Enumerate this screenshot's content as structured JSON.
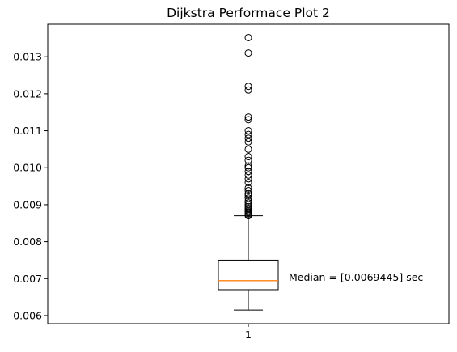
{
  "chart_data": {
    "type": "box",
    "title": "Dijkstra Performace Plot 2",
    "xlabel": "",
    "ylabel": "",
    "categories": [
      "1"
    ],
    "ylim": [
      0.00578,
      0.01388
    ],
    "yticks": [
      0.006,
      0.007,
      0.008,
      0.009,
      0.01,
      0.011,
      0.012,
      0.013
    ],
    "ytick_labels": [
      "0.006",
      "0.007",
      "0.008",
      "0.009",
      "0.010",
      "0.011",
      "0.012",
      "0.013"
    ],
    "grid": false,
    "box": {
      "whisker_low": 0.00615,
      "q1": 0.0067,
      "median": 0.0069445,
      "q3": 0.0075,
      "whisker_high": 0.0087
    },
    "outliers": [
      0.0087,
      0.00873,
      0.00876,
      0.0088,
      0.00883,
      0.00887,
      0.0089,
      0.00895,
      0.009,
      0.00905,
      0.0091,
      0.00918,
      0.00925,
      0.0093,
      0.00938,
      0.00945,
      0.0096,
      0.0097,
      0.0098,
      0.0099,
      0.01,
      0.01005,
      0.0102,
      0.0103,
      0.0105,
      0.0107,
      0.0108,
      0.0109,
      0.011,
      0.0113,
      0.01137,
      0.0121,
      0.0122,
      0.0131,
      0.01352
    ],
    "annotation": "Median = [0.0069445] sec",
    "colors": {
      "median": "#ff7f0e",
      "box": "#000000"
    }
  }
}
